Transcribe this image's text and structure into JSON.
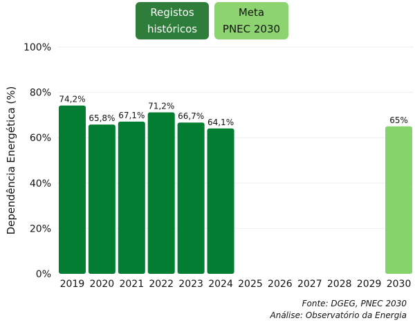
{
  "legend": [
    {
      "label": "Registos\nhistóricos",
      "color": "#037d32"
    },
    {
      "label": "Meta\nPNEC 2030",
      "color": "#86d36b"
    }
  ],
  "source": "Fonte: DGEG, PNEC 2030",
  "analysis": "Análise: Observatório da Energia",
  "chart_data": {
    "type": "bar",
    "ylabel": "Dependência Energética (%)",
    "xlabel": "",
    "ylim": [
      0,
      100
    ],
    "yticks": [
      "0%",
      "20%",
      "40%",
      "60%",
      "80%",
      "100%"
    ],
    "grid": true,
    "categories": [
      "2019",
      "2020",
      "2021",
      "2022",
      "2023",
      "2024",
      "2025",
      "2026",
      "2027",
      "2028",
      "2029",
      "2030"
    ],
    "series": [
      {
        "name": "Registos históricos",
        "color": "#037d32",
        "values": [
          74.2,
          65.8,
          67.1,
          71.2,
          66.7,
          64.1,
          null,
          null,
          null,
          null,
          null,
          null
        ],
        "labels": [
          "74,2%",
          "65,8%",
          "67,1%",
          "71,2%",
          "66,7%",
          "64,1%",
          "",
          "",
          "",
          "",
          "",
          ""
        ]
      },
      {
        "name": "Meta PNEC 2030",
        "color": "#86d36b",
        "values": [
          null,
          null,
          null,
          null,
          null,
          null,
          null,
          null,
          null,
          null,
          null,
          65
        ],
        "labels": [
          "",
          "",
          "",
          "",
          "",
          "",
          "",
          "",
          "",
          "",
          "",
          "65%"
        ]
      }
    ]
  }
}
